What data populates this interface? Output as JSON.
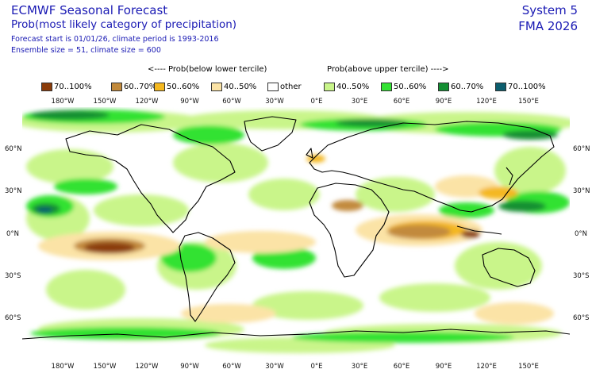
{
  "header": {
    "title": "ECMWF Seasonal Forecast",
    "subtitle": "Prob(most likely category of precipitation)",
    "forecast_start": "Forecast start is 01/01/26, climate period is 1993-2016",
    "ensemble": "Ensemble size = 51, climate size = 600",
    "system": "System 5",
    "period": "FMA 2026"
  },
  "legend": {
    "below_header": "<---- Prob(below lower tercile)",
    "above_header": "Prob(above upper tercile) ---->",
    "items": [
      {
        "label": "70..100%",
        "color": "#8b3c0a"
      },
      {
        "label": "60..70%",
        "color": "#c28a3c"
      },
      {
        "label": "50..60%",
        "color": "#f4b820"
      },
      {
        "label": "40..50%",
        "color": "#fbe3a6"
      },
      {
        "label": "other",
        "color": "#ffffff"
      },
      {
        "label": "40..50%",
        "color": "#c9f58a"
      },
      {
        "label": "50..60%",
        "color": "#33e233"
      },
      {
        "label": "60..70%",
        "color": "#138f32"
      },
      {
        "label": "70..100%",
        "color": "#0c5e6e"
      }
    ]
  },
  "lon_labels": [
    "180°W",
    "150°W",
    "120°W",
    "90°W",
    "60°W",
    "30°W",
    "0°E",
    "30°E",
    "60°E",
    "90°E",
    "120°E",
    "150°E"
  ],
  "lat_labels": [
    "60°N",
    "30°N",
    "0°N",
    "30°S",
    "60°S"
  ]
}
